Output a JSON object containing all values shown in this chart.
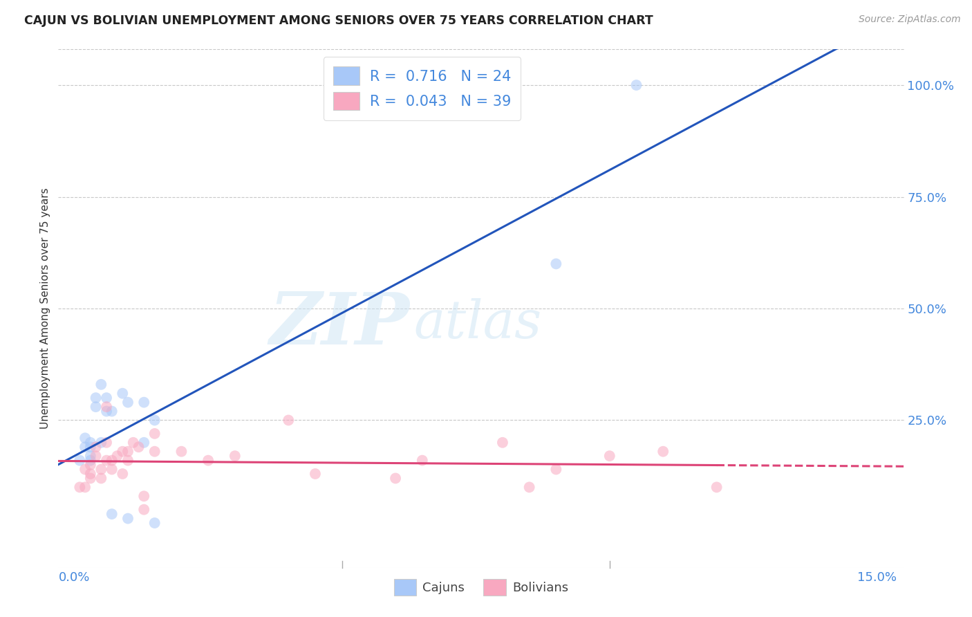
{
  "title": "CAJUN VS BOLIVIAN UNEMPLOYMENT AMONG SENIORS OVER 75 YEARS CORRELATION CHART",
  "source": "Source: ZipAtlas.com",
  "ylabel": "Unemployment Among Seniors over 75 years",
  "watermark_zip": "ZIP",
  "watermark_atlas": "atlas",
  "cajun_R": 0.716,
  "cajun_N": 24,
  "bolivian_R": 0.043,
  "bolivian_N": 39,
  "cajun_color": "#a8c8f8",
  "bolivian_color": "#f8a8c0",
  "cajun_line_color": "#2255bb",
  "bolivian_line_solid_color": "#dd4477",
  "bolivian_line_dash_color": "#dd4477",
  "background_color": "#ffffff",
  "grid_color": "#c8c8c8",
  "title_color": "#222222",
  "source_color": "#999999",
  "axis_label_color": "#4488dd",
  "legend_text_color": "#4488dd",
  "cajun_x": [
    0.1,
    0.2,
    0.2,
    0.3,
    0.3,
    0.3,
    0.3,
    0.4,
    0.4,
    0.5,
    0.5,
    0.6,
    0.6,
    0.7,
    0.7,
    0.9,
    1.0,
    1.0,
    1.3,
    1.3,
    1.5,
    1.5,
    9.0,
    10.5
  ],
  "cajun_y": [
    16.0,
    19.0,
    21.0,
    16.0,
    17.0,
    19.0,
    20.0,
    28.0,
    30.0,
    20.0,
    33.0,
    27.0,
    30.0,
    27.0,
    4.0,
    31.0,
    3.0,
    29.0,
    29.0,
    20.0,
    2.0,
    25.0,
    60.0,
    100.0
  ],
  "bolivian_x": [
    0.1,
    0.2,
    0.2,
    0.3,
    0.3,
    0.3,
    0.4,
    0.4,
    0.5,
    0.5,
    0.6,
    0.6,
    0.6,
    0.7,
    0.7,
    0.8,
    0.9,
    0.9,
    1.0,
    1.0,
    1.1,
    1.2,
    1.3,
    1.3,
    1.5,
    1.5,
    2.0,
    2.5,
    3.0,
    4.0,
    4.5,
    6.0,
    6.5,
    8.0,
    8.5,
    9.0,
    10.0,
    11.0,
    12.0
  ],
  "bolivian_y": [
    10.0,
    10.0,
    14.0,
    12.0,
    13.0,
    15.0,
    17.0,
    19.0,
    12.0,
    14.0,
    16.0,
    20.0,
    28.0,
    14.0,
    16.0,
    17.0,
    13.0,
    18.0,
    16.0,
    18.0,
    20.0,
    19.0,
    5.0,
    8.0,
    18.0,
    22.0,
    18.0,
    16.0,
    17.0,
    25.0,
    13.0,
    12.0,
    16.0,
    20.0,
    10.0,
    14.0,
    17.0,
    18.0,
    10.0
  ],
  "ytick_labels": [
    "25.0%",
    "50.0%",
    "75.0%",
    "100.0%"
  ],
  "ytick_values": [
    25.0,
    50.0,
    75.0,
    100.0
  ],
  "xtick_positions": [
    0.0,
    5.0,
    10.0,
    15.0
  ],
  "xtick_labels": [
    "0.0%",
    "",
    "",
    "15.0%"
  ],
  "xlim": [
    -0.3,
    15.5
  ],
  "ylim": [
    -8.0,
    108.0
  ],
  "marker_size": 130,
  "marker_alpha": 0.55,
  "line_width": 2.2,
  "bolivian_dash_start_x": 2.0
}
